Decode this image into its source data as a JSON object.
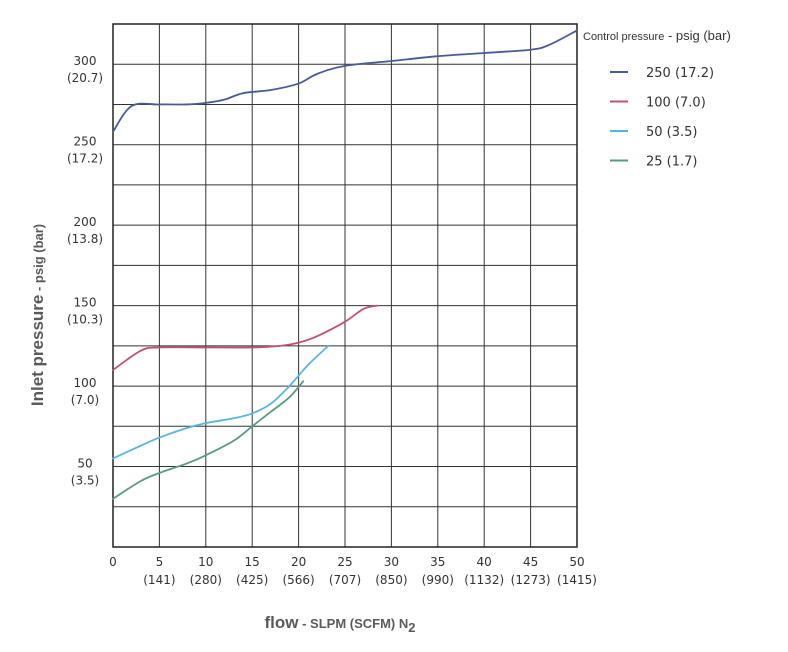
{
  "chart_data": {
    "type": "line",
    "xlabel": {
      "main": "flow",
      "unit": " - SLPM (SCFM) N",
      "subscript": "2"
    },
    "ylabel": {
      "main": "Inlet pressure",
      "unit": " - psig (bar)"
    },
    "xlim": [
      0,
      50
    ],
    "ylim": [
      0,
      325
    ],
    "grid": true,
    "x_ticks": [
      {
        "value": 0,
        "label": "0",
        "sub": ""
      },
      {
        "value": 5,
        "label": "5",
        "sub": "(141)"
      },
      {
        "value": 10,
        "label": "10",
        "sub": "(280)"
      },
      {
        "value": 15,
        "label": "15",
        "sub": "(425)"
      },
      {
        "value": 20,
        "label": "20",
        "sub": "(566)"
      },
      {
        "value": 25,
        "label": "25",
        "sub": "(707)"
      },
      {
        "value": 30,
        "label": "30",
        "sub": "(850)"
      },
      {
        "value": 35,
        "label": "35",
        "sub": "(990)"
      },
      {
        "value": 40,
        "label": "40",
        "sub": "(1132)"
      },
      {
        "value": 45,
        "label": "45",
        "sub": "(1273)"
      },
      {
        "value": 50,
        "label": "50",
        "sub": "(1415)"
      }
    ],
    "y_ticks": [
      {
        "value": 50,
        "label": "50",
        "sub": "(3.5)"
      },
      {
        "value": 100,
        "label": "100",
        "sub": "(7.0)"
      },
      {
        "value": 150,
        "label": "150",
        "sub": "(10.3)"
      },
      {
        "value": 200,
        "label": "200",
        "sub": "(13.8)"
      },
      {
        "value": 250,
        "label": "250",
        "sub": "(17.2)"
      },
      {
        "value": 300,
        "label": "300",
        "sub": "(20.7)"
      }
    ],
    "legend": {
      "title_main": "Control pressure",
      "title_unit": " - psig (bar)",
      "placement": "right"
    },
    "series": [
      {
        "name": "250 (17.2)",
        "color": "#4a5a96",
        "x": [
          0,
          2,
          5,
          8,
          10,
          12,
          14,
          17,
          20,
          22,
          25,
          30,
          35,
          40,
          45,
          47,
          50
        ],
        "y": [
          258,
          274,
          275,
          275,
          276,
          278,
          282,
          284,
          288,
          294,
          299,
          302,
          305,
          307,
          309,
          312,
          321
        ]
      },
      {
        "name": "100 (7.0)",
        "color": "#c0507a",
        "x": [
          0,
          3,
          5,
          10,
          15,
          18,
          20,
          22,
          25,
          27,
          28.5
        ],
        "y": [
          110,
          122,
          124,
          124,
          124,
          125,
          127,
          131,
          140,
          148,
          150
        ]
      },
      {
        "name": "50 (3.5)",
        "color": "#5ab4e0",
        "x": [
          0,
          3,
          5,
          8,
          10,
          13,
          15,
          17,
          19,
          21,
          23.2
        ],
        "y": [
          55,
          63,
          68,
          74,
          77,
          80,
          83,
          89,
          100,
          113,
          125
        ]
      },
      {
        "name": "25 (1.7)",
        "color": "#5a9a84",
        "x": [
          0,
          3,
          5,
          8,
          10,
          13,
          15,
          17,
          19,
          20.5
        ],
        "y": [
          30,
          41,
          46,
          52,
          57,
          66,
          75,
          84,
          93,
          103
        ]
      }
    ]
  }
}
